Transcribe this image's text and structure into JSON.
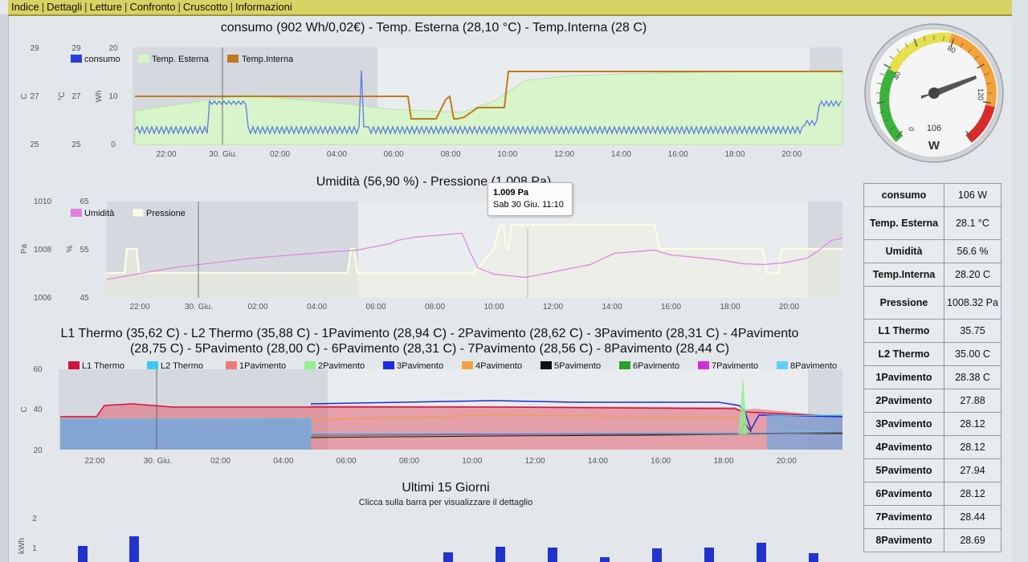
{
  "menu": [
    "Indice",
    "Dettagli",
    "Letture",
    "Confronto",
    "Cruscotto",
    "Informazioni"
  ],
  "x_ticks": [
    "22:00",
    "30. Giu.",
    "02:00",
    "04:00",
    "06:00",
    "08:00",
    "10:00",
    "12:00",
    "14:00",
    "16:00",
    "18:00",
    "20:00"
  ],
  "chart1": {
    "title": "consumo (902 Wh/0,02€) - Temp. Esterna (28,10 °C) - Temp.Interna (28 C)",
    "legend": [
      "consumo",
      "Temp. Esterna",
      "Temp.Interna"
    ],
    "colors": {
      "consumo": "#2a3fd6",
      "temp_esterna": "#d5f3c8",
      "temp_interna": "#c07a1c"
    },
    "axis_units": {
      "interna": "C",
      "esterna": "°C",
      "consumo": "Wh"
    },
    "axis_interna_ticks": [
      "29",
      "27",
      "25"
    ],
    "axis_esterna_ticks": [
      "29",
      "27",
      "25"
    ],
    "axis_consumo_ticks": [
      "20",
      "10",
      "0"
    ]
  },
  "chart2": {
    "title": "Umidità (56,90 %) - Pressione (1,008 Pa)",
    "legend": [
      "Umidità",
      "Pressione"
    ],
    "colors": {
      "umidita": "#e07ee0",
      "pressione": "#fafae8"
    },
    "axis_units": {
      "pressione": "Pa",
      "umidita": "%"
    },
    "axis_pressione_ticks": [
      "1010",
      "1008",
      "1006"
    ],
    "axis_umidita_ticks": [
      "65",
      "55",
      "45"
    ],
    "tooltip": {
      "value": "1.009 Pa",
      "time": "Sab 30 Giu. 11:10"
    }
  },
  "chart3": {
    "title_line1": "L1 Thermo (35,62 C) - L2 Thermo (35,88 C) - 1Pavimento (28,94 C) - 2Pavimento (28,62 C) - 3Pavimento (28,31 C) - 4Pavimento",
    "title_line2": "(28,75 C) - 5Pavimento (28,00 C) - 6Pavimento (28,31 C) - 7Pavimento (28,56 C) - 8Pavimento (28,44 C)",
    "legend": [
      {
        "name": "L1 Thermo",
        "color": "#d0143c"
      },
      {
        "name": "L2 Thermo",
        "color": "#3cc8f0"
      },
      {
        "name": "1Pavimento",
        "color": "#f07a7a"
      },
      {
        "name": "2Pavimento",
        "color": "#90f090"
      },
      {
        "name": "3Pavimento",
        "color": "#1a2ae0"
      },
      {
        "name": "4Pavimento",
        "color": "#f0a040"
      },
      {
        "name": "5Pavimento",
        "color": "#111111"
      },
      {
        "name": "6Pavimento",
        "color": "#2aa02a"
      },
      {
        "name": "7Pavimento",
        "color": "#d030d0"
      },
      {
        "name": "8Pavimento",
        "color": "#60d0f8"
      }
    ],
    "axis_unit": "C",
    "axis_ticks": [
      "60",
      "40",
      "20"
    ]
  },
  "chart4": {
    "title": "Ultimi 15 Giorni",
    "subtitle": "Clicca sulla barra per visualizzare il dettaglio",
    "axis_unit": "kWh",
    "axis_ticks": [
      "2",
      "1"
    ],
    "bar_color": "#2233cc"
  },
  "gauge": {
    "value": "106",
    "unit": "W",
    "ticks": [
      "0",
      "40",
      "80",
      "120"
    ]
  },
  "readings": [
    {
      "label": "consumo",
      "value": "106 W"
    },
    {
      "label": "Temp. Esterna",
      "value": "28.1 °C"
    },
    {
      "label": "Umidità",
      "value": "56.6 %"
    },
    {
      "label": "Temp.Interna",
      "value": "28.20 C"
    },
    {
      "label": "Pressione",
      "value": "1008.32 Pa"
    },
    {
      "label": "L1 Thermo",
      "value": "35.75"
    },
    {
      "label": "L2 Thermo",
      "value": "35.00 C"
    },
    {
      "label": "1Pavimento",
      "value": "28.38 C"
    },
    {
      "label": "2Pavimento",
      "value": "27.88"
    },
    {
      "label": "3Pavimento",
      "value": "28.12"
    },
    {
      "label": "4Pavimento",
      "value": "28.12"
    },
    {
      "label": "5Pavimento",
      "value": "27.94"
    },
    {
      "label": "6Pavimento",
      "value": "28.12"
    },
    {
      "label": "7Pavimento",
      "value": "28.44"
    },
    {
      "label": "8Pavimento",
      "value": "28.69"
    }
  ]
}
